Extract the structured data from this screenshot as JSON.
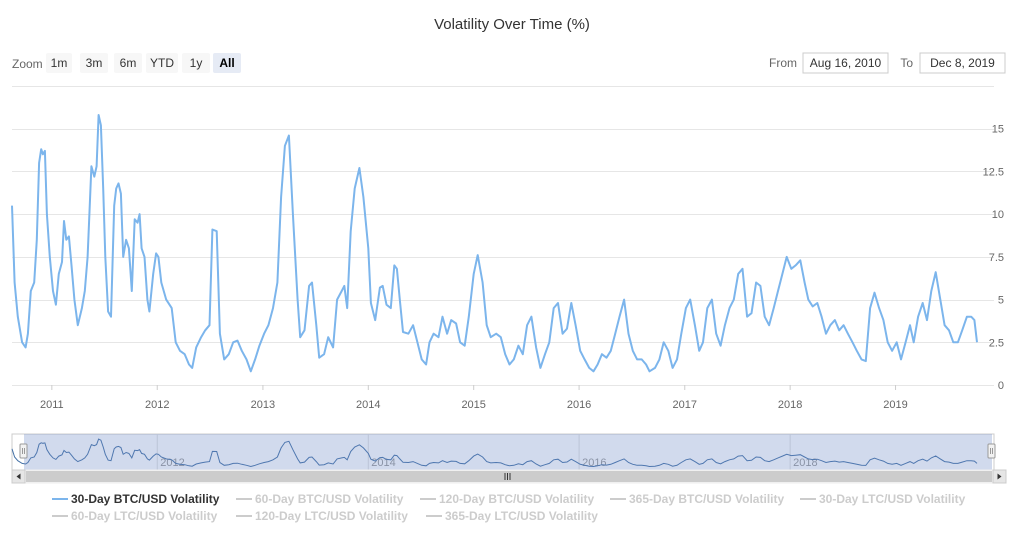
{
  "chart_data": {
    "type": "line",
    "title": "Volatility Over Time (%)",
    "zoom": {
      "label": "Zoom",
      "buttons": [
        "1m",
        "3m",
        "6m",
        "YTD",
        "1y",
        "All"
      ],
      "active": "All"
    },
    "range": {
      "from_label": "From",
      "from_value": "Aug 16, 2010",
      "to_label": "To",
      "to_value": "Dec 8, 2019"
    },
    "x_ticks": [
      "2011",
      "2012",
      "2013",
      "2014",
      "2015",
      "2016",
      "2017",
      "2018",
      "2019"
    ],
    "navigator_ticks": [
      "2012",
      "2014",
      "2016",
      "2018"
    ],
    "y_ticks": [
      "0",
      "2.5",
      "5",
      "7.5",
      "10",
      "12.5",
      "15"
    ],
    "xlim": [
      "2010-08-16",
      "2019-12-08"
    ],
    "ylim": [
      0,
      17.5
    ],
    "grid": true,
    "legend_placement": "bottom",
    "series": [
      {
        "name": "30-Day BTC/USD Volatility",
        "visible": true,
        "color": "#7cb5ec",
        "points": [
          [
            "2010-08-16",
            10.5
          ],
          [
            "2010-08-25",
            6.0
          ],
          [
            "2010-09-05",
            4.0
          ],
          [
            "2010-09-20",
            2.5
          ],
          [
            "2010-10-02",
            2.2
          ],
          [
            "2010-10-10",
            3.0
          ],
          [
            "2010-10-20",
            5.5
          ],
          [
            "2010-11-01",
            6.0
          ],
          [
            "2010-11-10",
            8.5
          ],
          [
            "2010-11-18",
            13.0
          ],
          [
            "2010-11-25",
            13.8
          ],
          [
            "2010-12-01",
            13.5
          ],
          [
            "2010-12-08",
            13.7
          ],
          [
            "2010-12-15",
            10.0
          ],
          [
            "2010-12-25",
            7.5
          ],
          [
            "2011-01-05",
            5.5
          ],
          [
            "2011-01-15",
            4.7
          ],
          [
            "2011-01-25",
            6.5
          ],
          [
            "2011-02-05",
            7.2
          ],
          [
            "2011-02-12",
            9.6
          ],
          [
            "2011-02-20",
            8.5
          ],
          [
            "2011-03-01",
            8.7
          ],
          [
            "2011-03-10",
            7.0
          ],
          [
            "2011-03-20",
            5.0
          ],
          [
            "2011-04-01",
            3.5
          ],
          [
            "2011-04-15",
            4.5
          ],
          [
            "2011-04-25",
            5.5
          ],
          [
            "2011-05-05",
            7.5
          ],
          [
            "2011-05-18",
            12.8
          ],
          [
            "2011-05-28",
            12.2
          ],
          [
            "2011-06-05",
            12.8
          ],
          [
            "2011-06-12",
            15.8
          ],
          [
            "2011-06-20",
            15.2
          ],
          [
            "2011-06-28",
            11.5
          ],
          [
            "2011-07-05",
            7.5
          ],
          [
            "2011-07-15",
            4.3
          ],
          [
            "2011-07-25",
            4.0
          ],
          [
            "2011-08-05",
            10.5
          ],
          [
            "2011-08-12",
            11.5
          ],
          [
            "2011-08-20",
            11.8
          ],
          [
            "2011-08-28",
            11.2
          ],
          [
            "2011-09-05",
            7.5
          ],
          [
            "2011-09-15",
            8.5
          ],
          [
            "2011-09-25",
            8.0
          ],
          [
            "2011-10-05",
            5.5
          ],
          [
            "2011-10-15",
            9.7
          ],
          [
            "2011-10-25",
            9.5
          ],
          [
            "2011-11-01",
            10.0
          ],
          [
            "2011-11-08",
            8.0
          ],
          [
            "2011-11-18",
            7.5
          ],
          [
            "2011-11-28",
            5.0
          ],
          [
            "2011-12-05",
            4.3
          ],
          [
            "2011-12-18",
            6.5
          ],
          [
            "2011-12-28",
            7.7
          ],
          [
            "2012-01-05",
            7.5
          ],
          [
            "2012-01-15",
            6.0
          ],
          [
            "2012-02-01",
            5.0
          ],
          [
            "2012-02-20",
            4.5
          ],
          [
            "2012-03-05",
            2.5
          ],
          [
            "2012-03-20",
            2.0
          ],
          [
            "2012-04-05",
            1.8
          ],
          [
            "2012-04-20",
            1.2
          ],
          [
            "2012-05-01",
            1.0
          ],
          [
            "2012-05-15",
            2.2
          ],
          [
            "2012-06-01",
            2.8
          ],
          [
            "2012-06-15",
            3.2
          ],
          [
            "2012-06-30",
            3.5
          ],
          [
            "2012-07-10",
            9.1
          ],
          [
            "2012-07-25",
            9.0
          ],
          [
            "2012-08-05",
            3.0
          ],
          [
            "2012-08-20",
            1.5
          ],
          [
            "2012-09-05",
            1.8
          ],
          [
            "2012-09-20",
            2.5
          ],
          [
            "2012-10-05",
            2.6
          ],
          [
            "2012-10-20",
            2.0
          ],
          [
            "2012-11-05",
            1.5
          ],
          [
            "2012-11-20",
            0.8
          ],
          [
            "2012-12-05",
            1.5
          ],
          [
            "2012-12-20",
            2.3
          ],
          [
            "2013-01-05",
            3.0
          ],
          [
            "2013-01-20",
            3.5
          ],
          [
            "2013-02-05",
            4.5
          ],
          [
            "2013-02-20",
            6.0
          ],
          [
            "2013-03-05",
            11.0
          ],
          [
            "2013-03-18",
            14.0
          ],
          [
            "2013-04-01",
            14.6
          ],
          [
            "2013-04-15",
            10.0
          ],
          [
            "2013-05-01",
            5.0
          ],
          [
            "2013-05-10",
            2.8
          ],
          [
            "2013-05-25",
            3.2
          ],
          [
            "2013-06-10",
            5.8
          ],
          [
            "2013-06-20",
            6.0
          ],
          [
            "2013-07-05",
            3.5
          ],
          [
            "2013-07-15",
            1.6
          ],
          [
            "2013-08-01",
            1.8
          ],
          [
            "2013-08-15",
            2.8
          ],
          [
            "2013-09-01",
            2.2
          ],
          [
            "2013-09-15",
            5.0
          ],
          [
            "2013-10-01",
            5.5
          ],
          [
            "2013-10-10",
            5.8
          ],
          [
            "2013-10-20",
            4.5
          ],
          [
            "2013-11-01",
            9.0
          ],
          [
            "2013-11-15",
            11.5
          ],
          [
            "2013-12-01",
            12.7
          ],
          [
            "2013-12-15",
            11.0
          ],
          [
            "2014-01-01",
            8.0
          ],
          [
            "2014-01-10",
            4.8
          ],
          [
            "2014-01-25",
            3.8
          ],
          [
            "2014-02-10",
            5.7
          ],
          [
            "2014-02-20",
            5.8
          ],
          [
            "2014-03-05",
            4.7
          ],
          [
            "2014-03-20",
            4.5
          ],
          [
            "2014-04-01",
            7.0
          ],
          [
            "2014-04-10",
            6.8
          ],
          [
            "2014-04-20",
            5.0
          ],
          [
            "2014-05-01",
            3.1
          ],
          [
            "2014-05-20",
            3.0
          ],
          [
            "2014-06-05",
            3.5
          ],
          [
            "2014-06-20",
            2.5
          ],
          [
            "2014-07-05",
            1.5
          ],
          [
            "2014-07-20",
            1.2
          ],
          [
            "2014-08-01",
            2.5
          ],
          [
            "2014-08-15",
            3.0
          ],
          [
            "2014-09-01",
            2.8
          ],
          [
            "2014-09-15",
            4.0
          ],
          [
            "2014-10-01",
            3.0
          ],
          [
            "2014-10-15",
            3.8
          ],
          [
            "2014-11-01",
            3.6
          ],
          [
            "2014-11-15",
            2.5
          ],
          [
            "2014-12-01",
            2.3
          ],
          [
            "2014-12-15",
            4.0
          ],
          [
            "2015-01-01",
            6.5
          ],
          [
            "2015-01-15",
            7.6
          ],
          [
            "2015-02-01",
            6.0
          ],
          [
            "2015-02-15",
            3.5
          ],
          [
            "2015-03-01",
            2.8
          ],
          [
            "2015-03-20",
            3.0
          ],
          [
            "2015-04-05",
            2.8
          ],
          [
            "2015-04-20",
            1.8
          ],
          [
            "2015-05-05",
            1.2
          ],
          [
            "2015-05-20",
            1.5
          ],
          [
            "2015-06-05",
            2.3
          ],
          [
            "2015-06-20",
            1.8
          ],
          [
            "2015-07-05",
            3.5
          ],
          [
            "2015-07-20",
            4.0
          ],
          [
            "2015-08-05",
            2.2
          ],
          [
            "2015-08-20",
            1.0
          ],
          [
            "2015-09-05",
            1.8
          ],
          [
            "2015-09-20",
            2.5
          ],
          [
            "2015-10-05",
            4.5
          ],
          [
            "2015-10-20",
            4.8
          ],
          [
            "2015-11-05",
            3.0
          ],
          [
            "2015-11-20",
            3.3
          ],
          [
            "2015-12-05",
            4.8
          ],
          [
            "2015-12-20",
            3.5
          ],
          [
            "2016-01-05",
            2.0
          ],
          [
            "2016-01-20",
            1.5
          ],
          [
            "2016-02-05",
            1.0
          ],
          [
            "2016-02-20",
            0.8
          ],
          [
            "2016-03-05",
            1.2
          ],
          [
            "2016-03-20",
            1.8
          ],
          [
            "2016-04-05",
            1.6
          ],
          [
            "2016-04-20",
            2.0
          ],
          [
            "2016-05-05",
            3.0
          ],
          [
            "2016-05-20",
            4.0
          ],
          [
            "2016-06-05",
            5.0
          ],
          [
            "2016-06-20",
            3.0
          ],
          [
            "2016-07-05",
            2.0
          ],
          [
            "2016-07-20",
            1.5
          ],
          [
            "2016-08-05",
            1.5
          ],
          [
            "2016-08-20",
            1.2
          ],
          [
            "2016-09-01",
            0.8
          ],
          [
            "2016-09-20",
            1.0
          ],
          [
            "2016-10-05",
            1.5
          ],
          [
            "2016-10-20",
            2.5
          ],
          [
            "2016-11-05",
            2.0
          ],
          [
            "2016-11-20",
            1.0
          ],
          [
            "2016-12-05",
            1.5
          ],
          [
            "2016-12-20",
            3.0
          ],
          [
            "2017-01-05",
            4.5
          ],
          [
            "2017-01-20",
            5.0
          ],
          [
            "2017-02-05",
            3.5
          ],
          [
            "2017-02-20",
            2.0
          ],
          [
            "2017-03-05",
            2.5
          ],
          [
            "2017-03-20",
            4.5
          ],
          [
            "2017-04-05",
            5.0
          ],
          [
            "2017-04-20",
            3.0
          ],
          [
            "2017-05-05",
            2.3
          ],
          [
            "2017-05-20",
            3.5
          ],
          [
            "2017-06-05",
            4.5
          ],
          [
            "2017-06-20",
            5.0
          ],
          [
            "2017-07-05",
            6.5
          ],
          [
            "2017-07-20",
            6.8
          ],
          [
            "2017-08-05",
            4.0
          ],
          [
            "2017-08-20",
            4.2
          ],
          [
            "2017-09-05",
            6.0
          ],
          [
            "2017-09-20",
            5.8
          ],
          [
            "2017-10-05",
            4.0
          ],
          [
            "2017-10-20",
            3.5
          ],
          [
            "2017-11-05",
            4.5
          ],
          [
            "2017-11-20",
            5.5
          ],
          [
            "2017-12-05",
            6.5
          ],
          [
            "2017-12-20",
            7.5
          ],
          [
            "2018-01-05",
            6.8
          ],
          [
            "2018-01-20",
            7.0
          ],
          [
            "2018-02-05",
            7.3
          ],
          [
            "2018-02-20",
            6.0
          ],
          [
            "2018-03-05",
            5.0
          ],
          [
            "2018-03-20",
            4.6
          ],
          [
            "2018-04-05",
            4.8
          ],
          [
            "2018-04-20",
            4.0
          ],
          [
            "2018-05-05",
            3.0
          ],
          [
            "2018-05-20",
            3.5
          ],
          [
            "2018-06-05",
            3.8
          ],
          [
            "2018-06-20",
            3.2
          ],
          [
            "2018-07-05",
            3.5
          ],
          [
            "2018-07-20",
            3.0
          ],
          [
            "2018-08-05",
            2.5
          ],
          [
            "2018-08-20",
            2.0
          ],
          [
            "2018-09-05",
            1.5
          ],
          [
            "2018-09-20",
            1.4
          ],
          [
            "2018-10-05",
            4.5
          ],
          [
            "2018-10-20",
            5.4
          ],
          [
            "2018-11-05",
            4.5
          ],
          [
            "2018-11-20",
            3.8
          ],
          [
            "2018-12-05",
            2.5
          ],
          [
            "2018-12-20",
            2.0
          ],
          [
            "2019-01-05",
            2.5
          ],
          [
            "2019-01-20",
            1.5
          ],
          [
            "2019-02-05",
            2.5
          ],
          [
            "2019-02-20",
            3.5
          ],
          [
            "2019-03-05",
            2.5
          ],
          [
            "2019-03-20",
            4.0
          ],
          [
            "2019-04-05",
            4.8
          ],
          [
            "2019-04-20",
            3.8
          ],
          [
            "2019-05-05",
            5.5
          ],
          [
            "2019-05-20",
            6.6
          ],
          [
            "2019-06-05",
            5.0
          ],
          [
            "2019-06-20",
            3.5
          ],
          [
            "2019-07-05",
            3.2
          ],
          [
            "2019-07-20",
            2.5
          ],
          [
            "2019-08-05",
            2.5
          ],
          [
            "2019-08-20",
            3.2
          ],
          [
            "2019-09-05",
            4.0
          ],
          [
            "2019-09-20",
            4.0
          ],
          [
            "2019-10-01",
            3.8
          ],
          [
            "2019-10-10",
            2.5
          ]
        ]
      },
      {
        "name": "60-Day BTC/USD Volatility",
        "visible": false,
        "color": "#cccccc"
      },
      {
        "name": "120-Day BTC/USD Volatility",
        "visible": false,
        "color": "#cccccc"
      },
      {
        "name": "365-Day BTC/USD Volatility",
        "visible": false,
        "color": "#cccccc"
      },
      {
        "name": "30-Day LTC/USD Volatility",
        "visible": false,
        "color": "#cccccc"
      },
      {
        "name": "60-Day LTC/USD Volatility",
        "visible": false,
        "color": "#cccccc"
      },
      {
        "name": "120-Day LTC/USD Volatility",
        "visible": false,
        "color": "#cccccc"
      },
      {
        "name": "365-Day LTC/USD Volatility",
        "visible": false,
        "color": "#cccccc"
      }
    ]
  },
  "colors": {
    "series_active": "#7cb5ec",
    "legend_active_text": "#333333",
    "legend_inactive_text": "#cccccc",
    "grid": "#e6e6e6",
    "navigator_mask": "rgba(102,133,194,0.3)",
    "navigator_line": "#4572a7"
  },
  "icons": {
    "scroll_left": "arrow-left-icon",
    "scroll_right": "arrow-right-icon",
    "scroll_grip": "grip-icon"
  }
}
